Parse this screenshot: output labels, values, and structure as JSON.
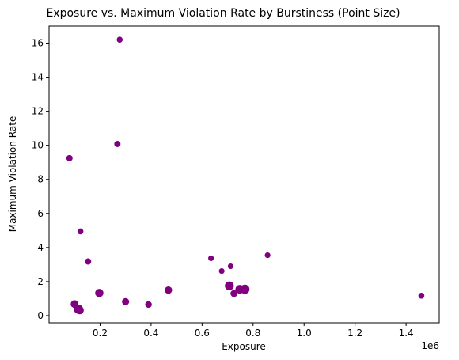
{
  "chart_data": {
    "type": "scatter",
    "title": "Exposure vs. Maximum Violation Rate by Burstiness (Point Size)",
    "xlabel": "Exposure",
    "ylabel": "Maximum Violation Rate",
    "x_offset_label": "1e6",
    "xlim": [
      0.0,
      1.53
    ],
    "ylim": [
      -0.42,
      17.0
    ],
    "x_ticks": [
      0.2,
      0.4,
      0.6,
      0.8,
      1.0,
      1.2,
      1.4
    ],
    "x_tick_labels": [
      "0.2",
      "0.4",
      "0.6",
      "0.8",
      "1.0",
      "1.2",
      "1.4"
    ],
    "y_ticks": [
      0,
      2,
      4,
      6,
      8,
      10,
      12,
      14,
      16
    ],
    "y_tick_labels": [
      "0",
      "2",
      "4",
      "6",
      "8",
      "10",
      "12",
      "14",
      "16"
    ],
    "grid": false,
    "legend": "none",
    "marker_color": "#800080",
    "points": [
      {
        "x": 0.08,
        "y": 9.25,
        "burstiness": 1.0
      },
      {
        "x": 0.1,
        "y": 0.68,
        "burstiness": 1.5
      },
      {
        "x": 0.115,
        "y": 0.38,
        "burstiness": 2.1
      },
      {
        "x": 0.12,
        "y": 0.32,
        "burstiness": 1.7
      },
      {
        "x": 0.123,
        "y": 4.95,
        "burstiness": 0.9
      },
      {
        "x": 0.153,
        "y": 3.18,
        "burstiness": 1.0
      },
      {
        "x": 0.197,
        "y": 1.33,
        "burstiness": 1.7
      },
      {
        "x": 0.268,
        "y": 10.08,
        "burstiness": 1.0
      },
      {
        "x": 0.277,
        "y": 16.2,
        "burstiness": 0.9
      },
      {
        "x": 0.3,
        "y": 0.82,
        "burstiness": 1.3
      },
      {
        "x": 0.39,
        "y": 0.65,
        "burstiness": 1.1
      },
      {
        "x": 0.468,
        "y": 1.5,
        "burstiness": 1.4
      },
      {
        "x": 0.635,
        "y": 3.37,
        "burstiness": 0.8
      },
      {
        "x": 0.677,
        "y": 2.62,
        "burstiness": 0.8
      },
      {
        "x": 0.707,
        "y": 1.75,
        "burstiness": 2.0
      },
      {
        "x": 0.712,
        "y": 2.9,
        "burstiness": 0.8
      },
      {
        "x": 0.725,
        "y": 1.3,
        "burstiness": 1.2
      },
      {
        "x": 0.748,
        "y": 1.55,
        "burstiness": 1.9
      },
      {
        "x": 0.768,
        "y": 1.55,
        "burstiness": 2.1
      },
      {
        "x": 0.857,
        "y": 3.55,
        "burstiness": 0.8
      },
      {
        "x": 1.46,
        "y": 1.17,
        "burstiness": 0.9
      }
    ]
  }
}
